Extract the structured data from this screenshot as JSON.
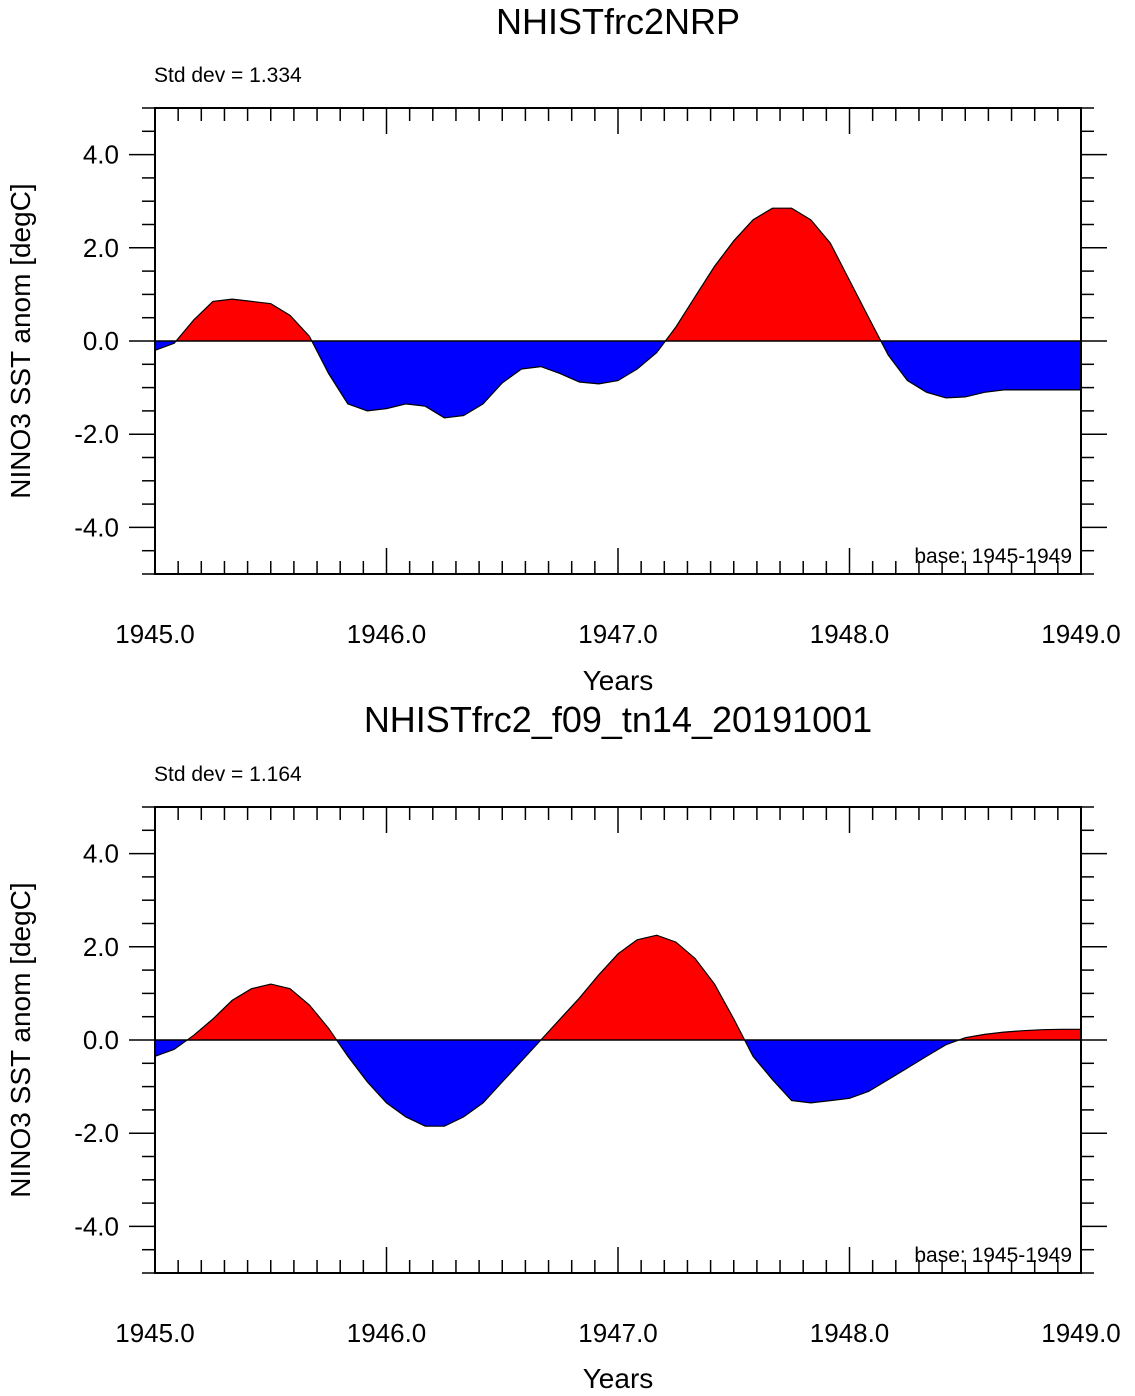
{
  "colors": {
    "positive": "#ff0000",
    "negative": "#0000ff",
    "axis": "#000000",
    "background": "#ffffff"
  },
  "chart_data": [
    {
      "type": "area",
      "title": "NHISTfrc2NRP",
      "stddev_label": "Std dev = 1.334",
      "base_label": "base: 1945-1949",
      "xlabel": "Years",
      "ylabel": "NINO3 SST anom [degC]",
      "xlim": [
        1945.0,
        1949.0
      ],
      "ylim": [
        -5.0,
        5.0
      ],
      "xticks": [
        1945.0,
        1946.0,
        1947.0,
        1948.0,
        1949.0
      ],
      "xtick_labels": [
        "1945.0",
        "1946.0",
        "1947.0",
        "1948.0",
        "1949.0"
      ],
      "yticks": [
        -4.0,
        -2.0,
        0.0,
        2.0,
        4.0
      ],
      "ytick_labels": [
        "-4.0",
        "-2.0",
        "0.0",
        "2.0",
        "4.0"
      ],
      "reference_line": 0.0,
      "series": [
        {
          "name": "NINO3 SST anomaly",
          "x": [
            1945.0,
            1945.083,
            1945.167,
            1945.25,
            1945.333,
            1945.417,
            1945.5,
            1945.583,
            1945.667,
            1945.75,
            1945.833,
            1945.917,
            1946.0,
            1946.083,
            1946.167,
            1946.25,
            1946.333,
            1946.417,
            1946.5,
            1946.583,
            1946.667,
            1946.75,
            1946.833,
            1946.917,
            1947.0,
            1947.083,
            1947.167,
            1947.25,
            1947.333,
            1947.417,
            1947.5,
            1947.583,
            1947.667,
            1947.75,
            1947.833,
            1947.917,
            1948.0,
            1948.083,
            1948.167,
            1948.25,
            1948.333,
            1948.417,
            1948.5,
            1948.583,
            1948.667,
            1948.75,
            1948.833,
            1948.917,
            1949.0
          ],
          "values": [
            -0.2,
            -0.05,
            0.45,
            0.85,
            0.9,
            0.85,
            0.8,
            0.55,
            0.1,
            -0.7,
            -1.35,
            -1.5,
            -1.45,
            -1.35,
            -1.4,
            -1.65,
            -1.6,
            -1.35,
            -0.9,
            -0.6,
            -0.55,
            -0.7,
            -0.88,
            -0.92,
            -0.85,
            -0.6,
            -0.25,
            0.3,
            0.95,
            1.6,
            2.15,
            2.6,
            2.85,
            2.85,
            2.6,
            2.1,
            1.3,
            0.5,
            -0.3,
            -0.85,
            -1.1,
            -1.22,
            -1.2,
            -1.1,
            -1.05,
            -1.05,
            -1.05,
            -1.05,
            -1.05
          ]
        }
      ]
    },
    {
      "type": "area",
      "title": "NHISTfrc2_f09_tn14_20191001",
      "stddev_label": "Std dev = 1.164",
      "base_label": "base: 1945-1949",
      "xlabel": "Years",
      "ylabel": "NINO3 SST anom [degC]",
      "xlim": [
        1945.0,
        1949.0
      ],
      "ylim": [
        -5.0,
        5.0
      ],
      "xticks": [
        1945.0,
        1946.0,
        1947.0,
        1948.0,
        1949.0
      ],
      "xtick_labels": [
        "1945.0",
        "1946.0",
        "1947.0",
        "1948.0",
        "1949.0"
      ],
      "yticks": [
        -4.0,
        -2.0,
        0.0,
        2.0,
        4.0
      ],
      "ytick_labels": [
        "-4.0",
        "-2.0",
        "0.0",
        "2.0",
        "4.0"
      ],
      "reference_line": 0.0,
      "series": [
        {
          "name": "NINO3 SST anomaly",
          "x": [
            1945.0,
            1945.083,
            1945.167,
            1945.25,
            1945.333,
            1945.417,
            1945.5,
            1945.583,
            1945.667,
            1945.75,
            1945.833,
            1945.917,
            1946.0,
            1946.083,
            1946.167,
            1946.25,
            1946.333,
            1946.417,
            1946.5,
            1946.583,
            1946.667,
            1946.75,
            1946.833,
            1946.917,
            1947.0,
            1947.083,
            1947.167,
            1947.25,
            1947.333,
            1947.417,
            1947.5,
            1947.583,
            1947.667,
            1947.75,
            1947.833,
            1947.917,
            1948.0,
            1948.083,
            1948.167,
            1948.25,
            1948.333,
            1948.417,
            1948.5,
            1948.583,
            1948.667,
            1948.75,
            1948.833,
            1948.917,
            1949.0
          ],
          "values": [
            -0.35,
            -0.2,
            0.1,
            0.45,
            0.85,
            1.1,
            1.2,
            1.1,
            0.75,
            0.25,
            -0.35,
            -0.9,
            -1.35,
            -1.65,
            -1.85,
            -1.85,
            -1.65,
            -1.35,
            -0.9,
            -0.45,
            0.0,
            0.45,
            0.9,
            1.4,
            1.85,
            2.15,
            2.25,
            2.1,
            1.75,
            1.2,
            0.45,
            -0.35,
            -0.85,
            -1.3,
            -1.35,
            -1.3,
            -1.25,
            -1.1,
            -0.85,
            -0.6,
            -0.35,
            -0.1,
            0.05,
            0.12,
            0.17,
            0.2,
            0.22,
            0.23,
            0.23
          ]
        }
      ]
    }
  ]
}
